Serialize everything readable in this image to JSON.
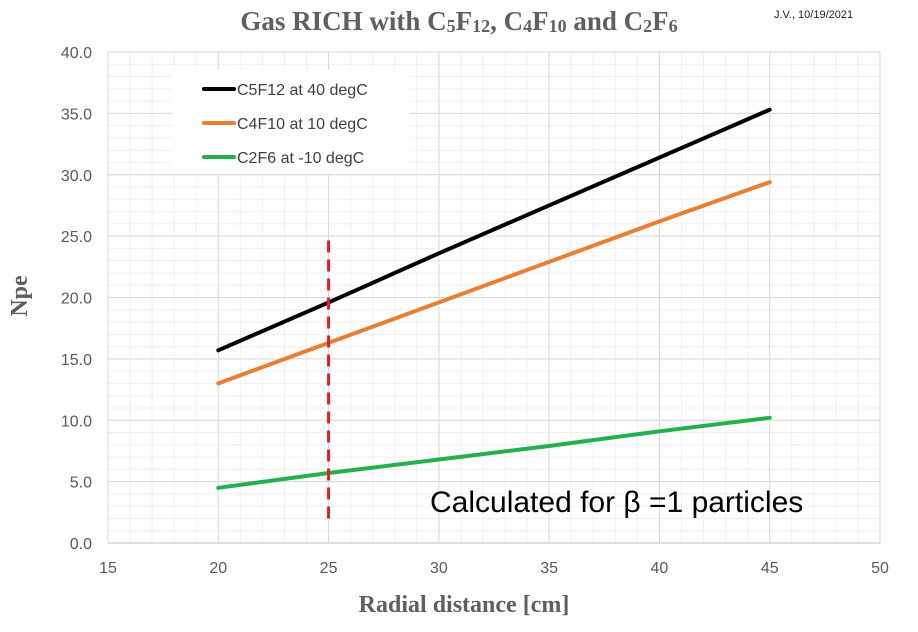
{
  "header": {
    "title_parts": [
      "Gas RICH with C",
      "5",
      "F",
      "12",
      ", C",
      "4",
      "F",
      "10",
      " and C",
      "2",
      "F",
      "6"
    ],
    "credit": "J.V., 10/19/2021"
  },
  "chart_data": {
    "type": "line",
    "title": "Gas RICH with C5F12, C4F10 and C2F6",
    "xlabel": "Radial distance [cm]",
    "ylabel": "Npe",
    "xlim": [
      15,
      50
    ],
    "ylim": [
      0,
      40
    ],
    "x_ticks": [
      "15",
      "20",
      "25",
      "30",
      "35",
      "40",
      "45",
      "50"
    ],
    "y_ticks": [
      "0.0",
      "5.0",
      "10.0",
      "15.0",
      "20.0",
      "25.0",
      "30.0",
      "35.0",
      "40.0"
    ],
    "grid": true,
    "legend_position": "top-left",
    "series": [
      {
        "name": "C5F12 at 40 degC",
        "color": "#000000",
        "x": [
          20,
          25,
          30,
          35,
          40,
          45
        ],
        "y": [
          15.7,
          19.6,
          23.6,
          27.5,
          31.4,
          35.3
        ]
      },
      {
        "name": "C4F10 at 10 degC",
        "color": "#ed7d31",
        "x": [
          20,
          25,
          30,
          35,
          40,
          45
        ],
        "y": [
          13.0,
          16.3,
          19.6,
          22.9,
          26.2,
          29.4
        ]
      },
      {
        "name": "C2F6 at -10 degC",
        "color": "#23b14d",
        "x": [
          20,
          25,
          30,
          35,
          40,
          45
        ],
        "y": [
          4.5,
          5.7,
          6.8,
          7.9,
          9.1,
          10.2
        ]
      }
    ],
    "reference_line": {
      "x": 25,
      "y_range": [
        2.0,
        24.8
      ],
      "color": "#e02020",
      "style": "dashed"
    },
    "annotation": "Calculated for β =1 particles"
  }
}
